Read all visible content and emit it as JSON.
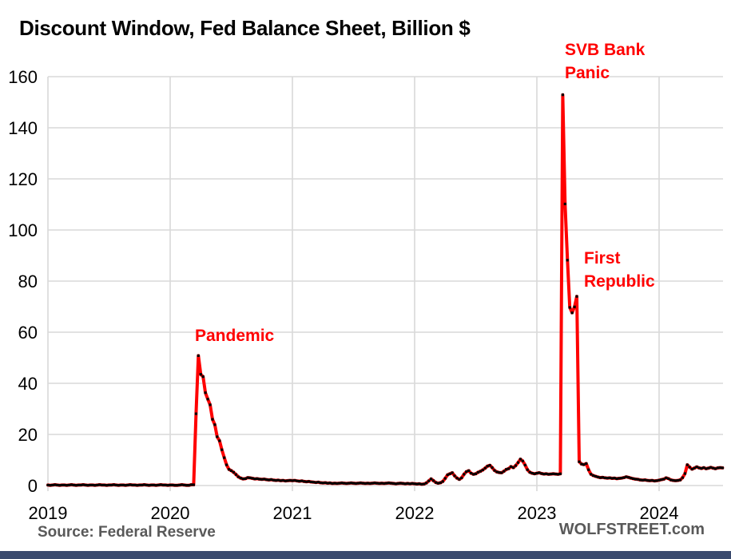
{
  "title": "Discount Window, Fed Balance Sheet, Billion $",
  "footer": {
    "source": "Source: Federal Reserve",
    "branding": "WOLFSTREET.com"
  },
  "annotations": {
    "pandemic": {
      "text": "Pandemic"
    },
    "svb_bank_panic": {
      "line1": "SVB Bank",
      "line2": "Panic"
    },
    "first_republic": {
      "line1": "First",
      "line2": "Republic"
    }
  },
  "colors": {
    "line": "#FF0000",
    "marker": "#000000",
    "grid": "#D9D9D9",
    "axis_text": "#000000",
    "annotation_text": "#FF0000",
    "footer_text": "#595959",
    "bottom_bar": "#3A4A6E",
    "background": "#FFFFFF"
  },
  "chart_data": {
    "type": "line",
    "title": "Discount Window, Fed Balance Sheet, Billion $",
    "xlabel": "",
    "ylabel": "",
    "ylim": [
      0,
      160
    ],
    "yticks": [
      0,
      20,
      40,
      60,
      80,
      100,
      120,
      140,
      160
    ],
    "xticks": [
      2019,
      2020,
      2021,
      2022,
      2023,
      2024
    ],
    "grid": "on",
    "legend": "none",
    "series_name": "Discount Window borrowings, billion $",
    "sampling": "weekly",
    "start_year": 2019,
    "points_per_year": 52,
    "values_by_year": {
      "2019": [
        0.2,
        0.1,
        0.2,
        0.3,
        0.2,
        0.1,
        0.2,
        0.2,
        0.1,
        0.2,
        0.3,
        0.2,
        0.1,
        0.2,
        0.2,
        0.3,
        0.2,
        0.1,
        0.2,
        0.2,
        0.1,
        0.2,
        0.3,
        0.2,
        0.2,
        0.1,
        0.2,
        0.2,
        0.3,
        0.2,
        0.1,
        0.2,
        0.2,
        0.1,
        0.2,
        0.3,
        0.2,
        0.2,
        0.1,
        0.2,
        0.2,
        0.3,
        0.2,
        0.1,
        0.2,
        0.2,
        0.1,
        0.2,
        0.3,
        0.2,
        0.2,
        0.1
      ],
      "2020": [
        0.2,
        0.2,
        0.1,
        0.1,
        0.2,
        0.3,
        0.2,
        0.1,
        0.1,
        0.3,
        0.3,
        28.1,
        50.8,
        43.5,
        42.6,
        36.3,
        33.8,
        31.6,
        25.9,
        23.8,
        19.1,
        17.5,
        14.0,
        10.9,
        8.1,
        6.3,
        5.8,
        5.2,
        4.3,
        3.4,
        2.9,
        2.6,
        2.7,
        3.1,
        3.0,
        2.8,
        2.6,
        2.7,
        2.5,
        2.4,
        2.5,
        2.3,
        2.2,
        2.3,
        2.1,
        2.0,
        2.1,
        1.9,
        2.0,
        1.8,
        1.9,
        2.0
      ],
      "2021": [
        1.9,
        2.0,
        1.8,
        1.7,
        1.8,
        1.6,
        1.5,
        1.6,
        1.4,
        1.3,
        1.2,
        1.3,
        1.1,
        1.0,
        1.1,
        0.9,
        1.0,
        0.8,
        0.9,
        0.8,
        0.9,
        1.0,
        0.9,
        0.8,
        0.9,
        1.0,
        0.9,
        0.8,
        0.9,
        1.0,
        0.9,
        0.8,
        0.9,
        0.8,
        0.9,
        1.0,
        0.9,
        0.8,
        0.9,
        0.8,
        0.9,
        1.0,
        0.9,
        0.8,
        0.7,
        0.8,
        0.9,
        0.8,
        0.7,
        0.8,
        0.7,
        0.8
      ],
      "2022": [
        0.7,
        0.6,
        0.7,
        0.5,
        0.6,
        1.0,
        1.8,
        2.6,
        1.9,
        1.2,
        0.9,
        1.1,
        1.6,
        2.8,
        4.2,
        4.6,
        5.0,
        3.8,
        2.9,
        2.4,
        3.0,
        4.4,
        5.4,
        5.8,
        4.8,
        4.4,
        4.6,
        5.2,
        5.6,
        6.1,
        6.8,
        7.6,
        7.9,
        7.0,
        5.9,
        5.3,
        5.1,
        5.0,
        5.6,
        6.3,
        6.6,
        7.4,
        7.0,
        7.8,
        9.0,
        10.3,
        9.6,
        8.0,
        6.2,
        5.2,
        4.8,
        4.6
      ],
      "2023": [
        4.8,
        5.0,
        4.7,
        4.5,
        4.6,
        4.4,
        4.5,
        4.6,
        4.5,
        4.4,
        4.6,
        152.9,
        110.2,
        88.2,
        69.7,
        67.6,
        69.9,
        74.0,
        9.3,
        8.4,
        8.2,
        8.6,
        6.2,
        4.4,
        3.9,
        3.6,
        3.3,
        3.1,
        3.2,
        3.0,
        2.9,
        3.0,
        2.8,
        2.9,
        2.7,
        2.8,
        2.9,
        3.1,
        3.4,
        3.2,
        2.9,
        2.7,
        2.5,
        2.4,
        2.2,
        2.1,
        2.2,
        2.0,
        1.9,
        2.0,
        1.8,
        1.9
      ],
      "2024": [
        2.1,
        2.3,
        2.5,
        3.0,
        2.7,
        2.2,
        2.0,
        1.9,
        2.0,
        2.2,
        3.1,
        4.7,
        8.1,
        7.2,
        6.4,
        6.8,
        7.3,
        6.9,
        6.7,
        7.0,
        6.6,
        6.8,
        7.1,
        6.8,
        6.6,
        6.9,
        7.0,
        6.9
      ]
    },
    "peak_annotated_values": {
      "pandemic_peak_mar_2020": 50.8,
      "svb_panic_peak_mar_2023": 152.9,
      "first_republic_peak_apr_2023": 74.0
    }
  }
}
